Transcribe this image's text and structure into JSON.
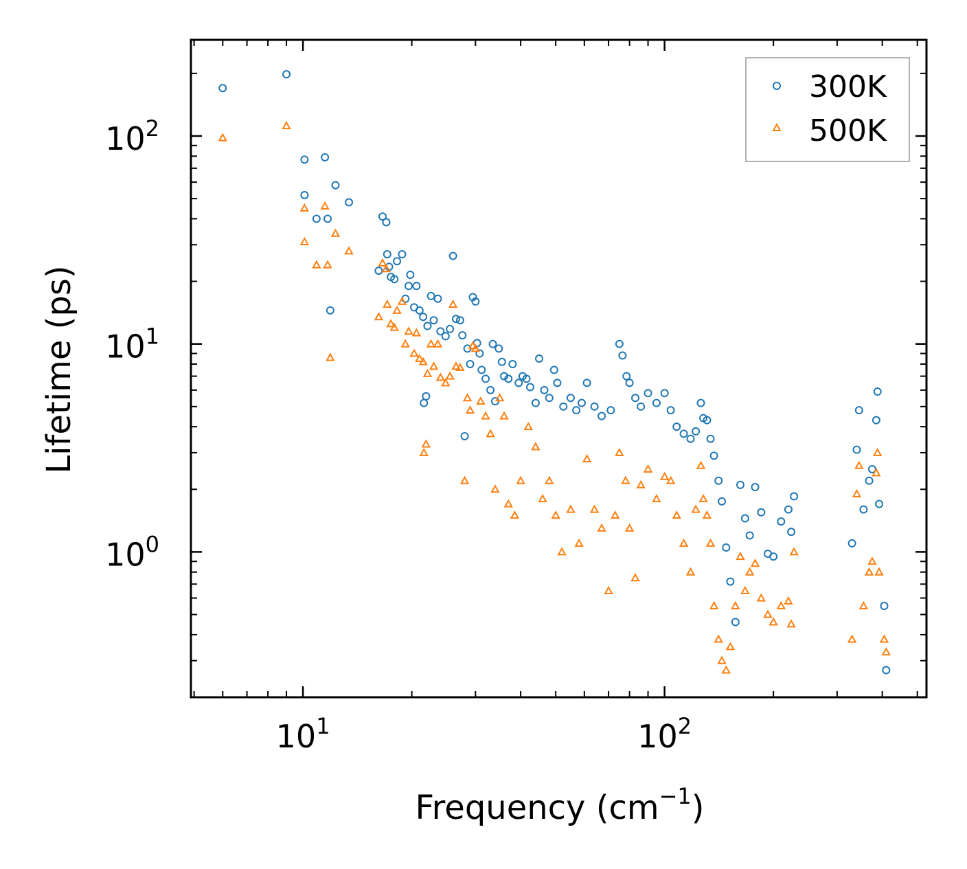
{
  "chart_data": {
    "type": "scatter",
    "xlabel": "Frequency (cm",
    "xlabel_sup": "−1",
    "xlabel_close": ")",
    "ylabel": "Lifetime (ps)",
    "xscale": "log",
    "yscale": "log",
    "xlim": [
      4.9,
      530
    ],
    "ylim": [
      0.2,
      290
    ],
    "x_ticks": [
      {
        "value": 10,
        "base": "10",
        "exp": "1"
      },
      {
        "value": 100,
        "base": "10",
        "exp": "2"
      }
    ],
    "y_ticks": [
      {
        "value": 1,
        "base": "10",
        "exp": "0"
      },
      {
        "value": 10,
        "base": "10",
        "exp": "1"
      },
      {
        "value": 100,
        "base": "10",
        "exp": "2"
      }
    ],
    "legend_position": "top-right",
    "series": [
      {
        "name": "300K",
        "marker": "circle",
        "color": "#1f77b4",
        "points": [
          [
            6.0,
            170
          ],
          [
            9.0,
            198
          ],
          [
            10.1,
            77
          ],
          [
            10.1,
            52
          ],
          [
            10.9,
            40
          ],
          [
            11.5,
            79
          ],
          [
            11.7,
            40
          ],
          [
            11.9,
            14.5
          ],
          [
            12.3,
            58
          ],
          [
            13.4,
            48
          ],
          [
            16.2,
            22.5
          ],
          [
            16.6,
            41
          ],
          [
            17.0,
            38.5
          ],
          [
            17.1,
            27
          ],
          [
            17.3,
            23.5
          ],
          [
            17.5,
            21
          ],
          [
            17.9,
            20.5
          ],
          [
            18.2,
            25
          ],
          [
            18.8,
            27
          ],
          [
            19.2,
            16.5
          ],
          [
            19.6,
            19
          ],
          [
            19.8,
            21.5
          ],
          [
            20.3,
            15
          ],
          [
            20.6,
            19
          ],
          [
            21.0,
            14.5
          ],
          [
            21.5,
            13.5
          ],
          [
            21.6,
            5.2
          ],
          [
            21.9,
            5.6
          ],
          [
            22.1,
            12.2
          ],
          [
            22.6,
            17
          ],
          [
            23.0,
            13
          ],
          [
            23.6,
            16.5
          ],
          [
            24.0,
            11.5
          ],
          [
            24.8,
            10.9
          ],
          [
            25.5,
            11.8
          ],
          [
            26.0,
            26.5
          ],
          [
            26.5,
            13.2
          ],
          [
            27.2,
            13
          ],
          [
            27.6,
            11
          ],
          [
            28.0,
            3.6
          ],
          [
            28.5,
            9.5
          ],
          [
            29.0,
            8
          ],
          [
            29.5,
            16.8
          ],
          [
            30.0,
            16
          ],
          [
            30.3,
            10.1
          ],
          [
            30.8,
            9
          ],
          [
            31.2,
            7.5
          ],
          [
            32.0,
            6.8
          ],
          [
            33.0,
            6
          ],
          [
            33.5,
            10
          ],
          [
            34.0,
            5.3
          ],
          [
            34.8,
            9.5
          ],
          [
            35.5,
            8.2
          ],
          [
            36.0,
            7
          ],
          [
            37.0,
            6.8
          ],
          [
            38.0,
            8
          ],
          [
            39.5,
            6.5
          ],
          [
            40.5,
            7
          ],
          [
            41.5,
            6.8
          ],
          [
            42.5,
            6.2
          ],
          [
            44.0,
            5.2
          ],
          [
            45.0,
            8.5
          ],
          [
            46.5,
            6
          ],
          [
            48.0,
            5.5
          ],
          [
            49.5,
            7.5
          ],
          [
            50.5,
            6.5
          ],
          [
            52.5,
            5
          ],
          [
            55.0,
            5.5
          ],
          [
            57.0,
            4.8
          ],
          [
            59.0,
            5.2
          ],
          [
            61.0,
            6.5
          ],
          [
            64.0,
            5
          ],
          [
            67.0,
            4.5
          ],
          [
            71.0,
            4.8
          ],
          [
            75.0,
            10
          ],
          [
            76.5,
            8.8
          ],
          [
            78.5,
            7
          ],
          [
            80.0,
            6.5
          ],
          [
            83.0,
            5.5
          ],
          [
            86.0,
            5
          ],
          [
            90.0,
            5.8
          ],
          [
            95.0,
            5.2
          ],
          [
            100.0,
            5.8
          ],
          [
            104.0,
            4.8
          ],
          [
            108.0,
            4
          ],
          [
            113.0,
            3.7
          ],
          [
            118.0,
            3.5
          ],
          [
            122.0,
            3.8
          ],
          [
            126.0,
            5.2
          ],
          [
            128.0,
            4.4
          ],
          [
            131.0,
            4.3
          ],
          [
            134.0,
            3.5
          ],
          [
            137.0,
            2.9
          ],
          [
            141.0,
            2.2
          ],
          [
            144.0,
            1.75
          ],
          [
            148.0,
            1.05
          ],
          [
            152.0,
            0.72
          ],
          [
            157.0,
            0.46
          ],
          [
            162.0,
            2.1
          ],
          [
            167.0,
            1.45
          ],
          [
            172.0,
            1.2
          ],
          [
            178.0,
            2.05
          ],
          [
            185.0,
            1.55
          ],
          [
            193.0,
            0.98
          ],
          [
            200.0,
            0.95
          ],
          [
            210.0,
            1.4
          ],
          [
            220.0,
            1.6
          ],
          [
            224.0,
            1.25
          ],
          [
            228.0,
            1.85
          ],
          [
            330.0,
            1.1
          ],
          [
            340.0,
            3.1
          ],
          [
            345.0,
            4.8
          ],
          [
            355.0,
            1.6
          ],
          [
            368.0,
            2.2
          ],
          [
            375.0,
            2.5
          ],
          [
            385.0,
            4.3
          ],
          [
            388.0,
            5.9
          ],
          [
            392.0,
            1.7
          ],
          [
            405.0,
            0.55
          ],
          [
            410.0,
            0.27
          ]
        ]
      },
      {
        "name": "500K",
        "marker": "triangle",
        "color": "#ff7f0e",
        "points": [
          [
            6.0,
            98
          ],
          [
            9.0,
            112
          ],
          [
            10.1,
            45
          ],
          [
            10.1,
            31
          ],
          [
            10.9,
            24
          ],
          [
            11.5,
            46
          ],
          [
            11.7,
            24
          ],
          [
            11.9,
            8.6
          ],
          [
            12.3,
            34
          ],
          [
            13.4,
            28
          ],
          [
            16.2,
            13.5
          ],
          [
            16.6,
            24.5
          ],
          [
            17.0,
            23
          ],
          [
            17.1,
            15.5
          ],
          [
            17.5,
            12.5
          ],
          [
            17.9,
            12
          ],
          [
            18.2,
            14.5
          ],
          [
            18.8,
            16
          ],
          [
            19.2,
            10
          ],
          [
            19.6,
            11.5
          ],
          [
            20.3,
            9
          ],
          [
            20.6,
            11.3
          ],
          [
            21.0,
            8.5
          ],
          [
            21.5,
            8.2
          ],
          [
            21.6,
            3
          ],
          [
            21.9,
            3.3
          ],
          [
            22.1,
            7.2
          ],
          [
            22.6,
            10
          ],
          [
            23.0,
            7.8
          ],
          [
            23.6,
            10
          ],
          [
            24.0,
            6.9
          ],
          [
            24.8,
            6.5
          ],
          [
            25.5,
            7
          ],
          [
            26.0,
            15.5
          ],
          [
            26.5,
            7.8
          ],
          [
            27.2,
            7.7
          ],
          [
            28.0,
            2.2
          ],
          [
            28.5,
            5.5
          ],
          [
            29.0,
            4.8
          ],
          [
            29.5,
            9.8
          ],
          [
            30.0,
            9.5
          ],
          [
            31.0,
            5.3
          ],
          [
            32.0,
            4.5
          ],
          [
            33.0,
            3.7
          ],
          [
            34.0,
            2
          ],
          [
            35.0,
            5.5
          ],
          [
            36.0,
            4.5
          ],
          [
            37.0,
            1.7
          ],
          [
            38.5,
            1.5
          ],
          [
            40.0,
            2.2
          ],
          [
            42.0,
            4
          ],
          [
            44.0,
            3.2
          ],
          [
            46.0,
            1.8
          ],
          [
            48.0,
            2.2
          ],
          [
            50.0,
            1.5
          ],
          [
            52.0,
            1
          ],
          [
            55.0,
            1.6
          ],
          [
            58.0,
            1.1
          ],
          [
            61.0,
            2.8
          ],
          [
            64.0,
            1.6
          ],
          [
            67.0,
            1.3
          ],
          [
            70.0,
            0.65
          ],
          [
            73.0,
            1.5
          ],
          [
            75.0,
            3
          ],
          [
            78.0,
            2.2
          ],
          [
            80.0,
            1.3
          ],
          [
            83.0,
            0.75
          ],
          [
            86.0,
            2.1
          ],
          [
            90.0,
            2.5
          ],
          [
            95.0,
            1.8
          ],
          [
            100.0,
            2.3
          ],
          [
            104.0,
            2.2
          ],
          [
            108.0,
            1.5
          ],
          [
            113.0,
            1.1
          ],
          [
            118.0,
            0.8
          ],
          [
            122.0,
            1.6
          ],
          [
            126.0,
            2.6
          ],
          [
            128.0,
            1.8
          ],
          [
            131.0,
            1.5
          ],
          [
            134.0,
            1.1
          ],
          [
            137.0,
            0.55
          ],
          [
            141.0,
            0.38
          ],
          [
            144.0,
            0.3
          ],
          [
            148.0,
            0.27
          ],
          [
            152.0,
            0.35
          ],
          [
            157.0,
            0.55
          ],
          [
            162.0,
            0.95
          ],
          [
            167.0,
            0.65
          ],
          [
            172.0,
            0.8
          ],
          [
            178.0,
            0.88
          ],
          [
            185.0,
            0.6
          ],
          [
            193.0,
            0.5
          ],
          [
            200.0,
            0.46
          ],
          [
            210.0,
            0.55
          ],
          [
            220.0,
            0.58
          ],
          [
            224.0,
            0.45
          ],
          [
            228.0,
            1
          ],
          [
            330.0,
            0.38
          ],
          [
            340.0,
            1.9
          ],
          [
            345.0,
            2.6
          ],
          [
            355.0,
            0.55
          ],
          [
            368.0,
            0.8
          ],
          [
            375.0,
            0.9
          ],
          [
            385.0,
            2.4
          ],
          [
            388.0,
            3
          ],
          [
            392.0,
            0.8
          ],
          [
            405.0,
            0.38
          ],
          [
            410.0,
            0.33
          ]
        ]
      }
    ]
  }
}
